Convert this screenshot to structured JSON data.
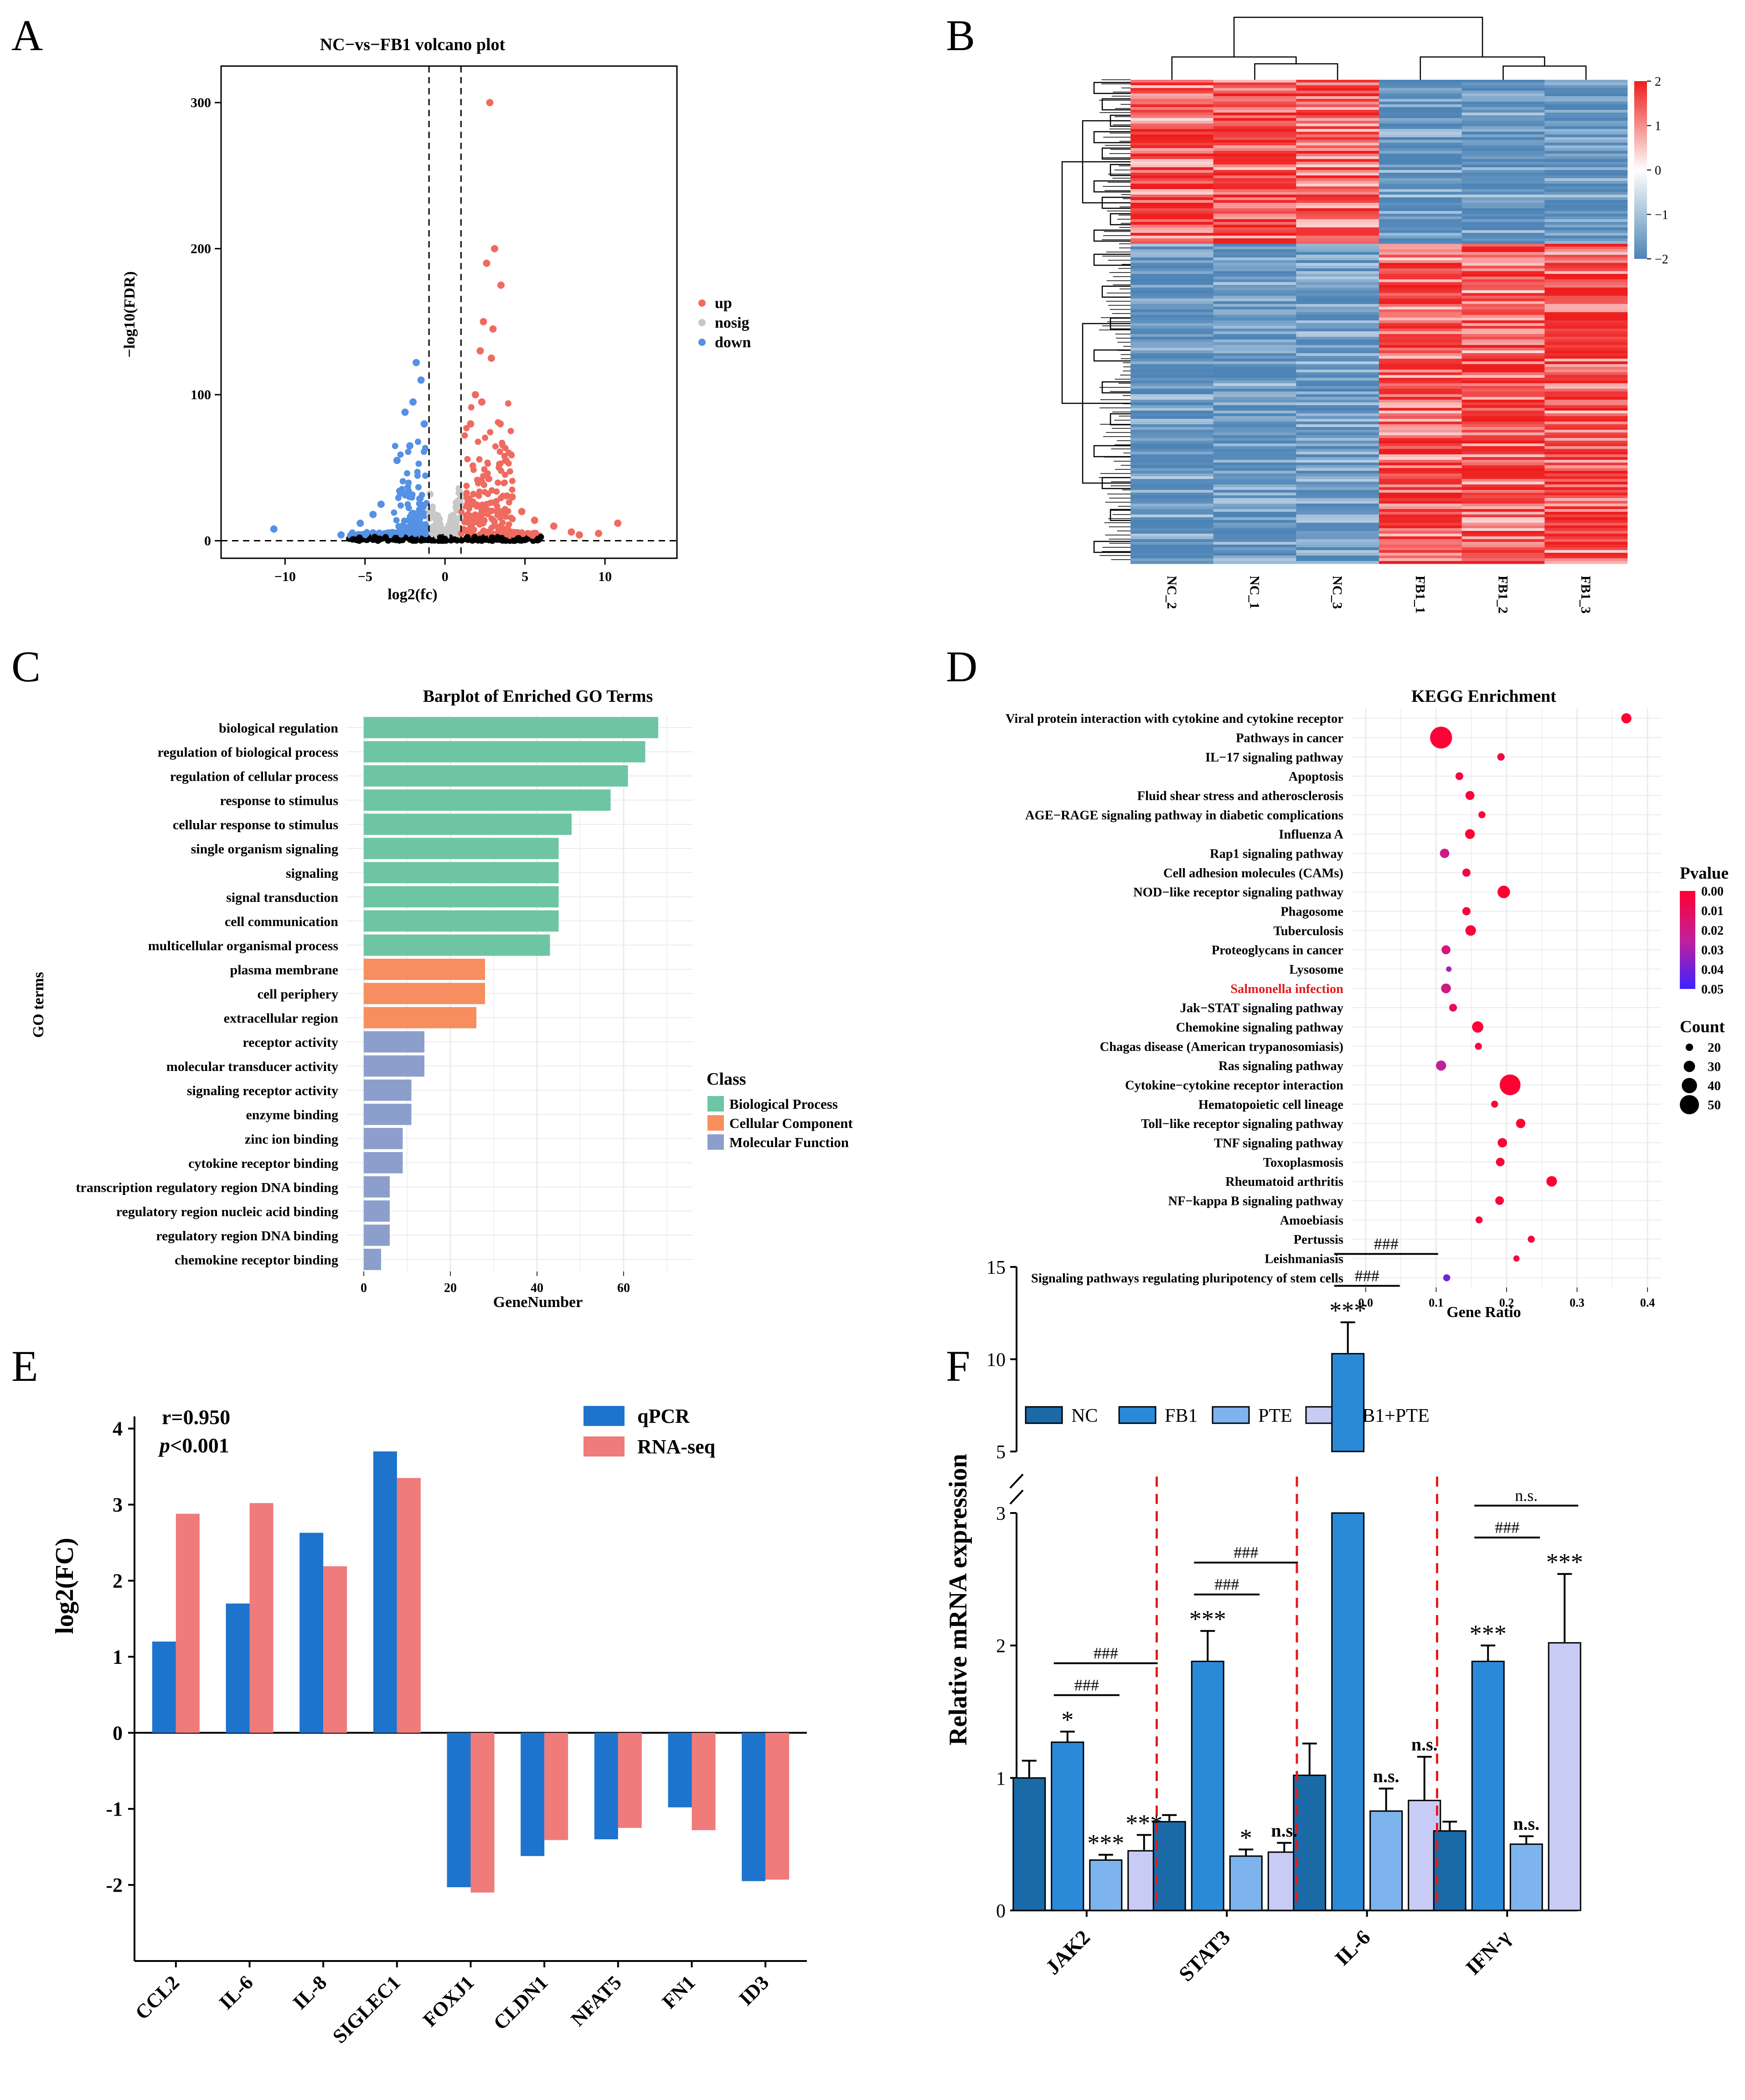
{
  "panel_labels": [
    "A",
    "B",
    "C",
    "D",
    "E",
    "F"
  ],
  "colors": {
    "up": "#ef6b5f",
    "down": "#5591e4",
    "nosig": "#c8c8c8",
    "bp": "#6ec5a4",
    "cc": "#f68e5f",
    "mf": "#8c9fcc",
    "qpcr": "#1e74cc",
    "rnaseq": "#ef7b7b",
    "nc": "#1b6aa8",
    "fb1": "#2b8ad8",
    "pte": "#7db4ee",
    "fb1pte": "#c8ccf5",
    "heat_high": "#ee1c1c",
    "heat_mid": "#ffffff",
    "heat_low": "#4d84b6"
  },
  "chart_data": [
    {
      "panel": "A",
      "type": "scatter",
      "title": "NC−vs−FB1 volcano plot",
      "xlabel": "log2(fc)",
      "ylabel": "−log10(FDR)",
      "xlim": [
        -14,
        14.5
      ],
      "ylim": [
        -12,
        325
      ],
      "xticks": [
        -10,
        -5,
        0,
        5,
        10
      ],
      "yticks": [
        0,
        100,
        200,
        300
      ],
      "tick_labels_x": [
        "−10",
        "−5",
        "0",
        "5",
        "10"
      ],
      "tick_labels_y": [
        "0",
        "100",
        "200",
        "300"
      ],
      "fc_threshold": 1,
      "fdr_threshold": 0,
      "legend": [
        "up",
        "nosig",
        "down"
      ],
      "up_points": [
        {
          "x": 2.8,
          "y": 300
        },
        {
          "x": 3.1,
          "y": 200
        },
        {
          "x": 2.6,
          "y": 190
        },
        {
          "x": 3.5,
          "y": 175
        },
        {
          "x": 2.4,
          "y": 150
        },
        {
          "x": 3.0,
          "y": 145
        },
        {
          "x": 2.2,
          "y": 130
        },
        {
          "x": 2.9,
          "y": 125
        },
        {
          "x": 10.8,
          "y": 12
        },
        {
          "x": 9.6,
          "y": 5
        },
        {
          "x": 8.4,
          "y": 4
        },
        {
          "x": 7.9,
          "y": 6
        },
        {
          "x": 6.8,
          "y": 10
        },
        {
          "x": 5.6,
          "y": 14
        },
        {
          "x": 4.8,
          "y": 20
        },
        {
          "x": 4.2,
          "y": 30
        },
        {
          "x": 3.8,
          "y": 55
        },
        {
          "x": 1.9,
          "y": 100
        },
        {
          "x": 2.3,
          "y": 95
        },
        {
          "x": 1.6,
          "y": 80
        }
      ],
      "down_points": [
        {
          "x": -1.8,
          "y": 122
        },
        {
          "x": -1.5,
          "y": 110
        },
        {
          "x": -2.0,
          "y": 95
        },
        {
          "x": -2.5,
          "y": 88
        },
        {
          "x": -1.3,
          "y": 80
        },
        {
          "x": -3.0,
          "y": 55
        },
        {
          "x": -4.0,
          "y": 25
        },
        {
          "x": -4.5,
          "y": 18
        },
        {
          "x": -5.3,
          "y": 12
        },
        {
          "x": -10.7,
          "y": 8
        },
        {
          "x": -6.5,
          "y": 4
        },
        {
          "x": -2.2,
          "y": 65
        }
      ]
    },
    {
      "panel": "B",
      "type": "heatmap",
      "samples": [
        "NC_2",
        "NC_1",
        "NC_3",
        "FB1_1",
        "FB1_2",
        "FB1_3"
      ],
      "colorbar_ticks": [
        "2",
        "1",
        "0",
        "−1",
        "−2"
      ],
      "clusters": [
        "genes up in NC",
        "genes up in FB1"
      ]
    },
    {
      "panel": "C",
      "type": "bar",
      "orientation": "horizontal",
      "title": "Barplot of Enriched GO Terms",
      "xlabel": "GeneNumber",
      "ylabel": "GO terms",
      "xlim": [
        -4,
        76
      ],
      "xticks": [
        "0",
        "20",
        "40",
        "60"
      ],
      "legend_title": "Class",
      "legend": [
        "Biological Process",
        "Cellular Component",
        "Molecular Function"
      ],
      "categories": [
        "biological regulation",
        "regulation of biological process",
        "regulation of cellular process",
        "response to stimulus",
        "cellular response to stimulus",
        "single organism signaling",
        "signaling",
        "signal transduction",
        "cell communication",
        "multicellular organismal process",
        "plasma membrane",
        "cell periphery",
        "extracellular region",
        "receptor activity",
        "molecular transducer activity",
        "signaling receptor activity",
        "enzyme binding",
        "zinc ion binding",
        "cytokine receptor binding",
        "transcription regulatory region DNA binding",
        "regulatory region nucleic acid binding",
        "regulatory region DNA binding",
        "chemokine receptor binding"
      ],
      "values": [
        68,
        65,
        61,
        57,
        48,
        45,
        45,
        45,
        45,
        43,
        28,
        28,
        26,
        14,
        14,
        11,
        11,
        9,
        9,
        6,
        6,
        6,
        4
      ],
      "classes": [
        "bp",
        "bp",
        "bp",
        "bp",
        "bp",
        "bp",
        "bp",
        "bp",
        "bp",
        "bp",
        "cc",
        "cc",
        "cc",
        "mf",
        "mf",
        "mf",
        "mf",
        "mf",
        "mf",
        "mf",
        "mf",
        "mf",
        "mf"
      ]
    },
    {
      "panel": "D",
      "type": "scatter",
      "title": "KEGG Enrichment",
      "xlabel": "Gene Ratio",
      "xlim": [
        -0.02,
        0.42
      ],
      "xticks": [
        "0.0",
        "0.1",
        "0.2",
        "0.3",
        "0.4"
      ],
      "pvalue_legend_title": "Pvalue",
      "pvalue_ticks": [
        "0.00",
        "0.01",
        "0.02",
        "0.03",
        "0.04",
        "0.05"
      ],
      "count_legend_title": "Count",
      "count_ticks": [
        20,
        30,
        40,
        50
      ],
      "highlight_index": 14,
      "terms": [
        {
          "name": "Viral protein interaction with cytokine and cytokine receptor",
          "ratio": 0.37,
          "count": 27,
          "p": 0.0
        },
        {
          "name": "Pathways in cancer",
          "ratio": 0.107,
          "count": 57,
          "p": 0.001
        },
        {
          "name": "IL−17 signaling pathway",
          "ratio": 0.192,
          "count": 20,
          "p": 0.002
        },
        {
          "name": "Apoptosis",
          "ratio": 0.133,
          "count": 21,
          "p": 0.004
        },
        {
          "name": "Fluid shear stress and atherosclerosis",
          "ratio": 0.148,
          "count": 24,
          "p": 0.002
        },
        {
          "name": "AGE−RAGE signaling pathway in diabetic complications",
          "ratio": 0.165,
          "count": 19,
          "p": 0.002
        },
        {
          "name": "Influenza A",
          "ratio": 0.148,
          "count": 26,
          "p": 0.001
        },
        {
          "name": "Rap1 signaling pathway",
          "ratio": 0.112,
          "count": 25,
          "p": 0.02
        },
        {
          "name": "Cell adhesion molecules (CAMs)",
          "ratio": 0.143,
          "count": 22,
          "p": 0.003
        },
        {
          "name": "NOD−like receptor signaling pathway",
          "ratio": 0.196,
          "count": 33,
          "p": 0.0
        },
        {
          "name": "Phagosome",
          "ratio": 0.143,
          "count": 22,
          "p": 0.002
        },
        {
          "name": "Tuberculosis",
          "ratio": 0.149,
          "count": 28,
          "p": 0.002
        },
        {
          "name": "Proteoglycans in cancer",
          "ratio": 0.114,
          "count": 24,
          "p": 0.018
        },
        {
          "name": "Lysosome",
          "ratio": 0.118,
          "count": 15,
          "p": 0.03
        },
        {
          "name": "Salmonella infection",
          "ratio": 0.114,
          "count": 26,
          "p": 0.02
        },
        {
          "name": "Jak−STAT signaling pathway",
          "ratio": 0.124,
          "count": 21,
          "p": 0.01
        },
        {
          "name": "Chemokine signaling pathway",
          "ratio": 0.159,
          "count": 30,
          "p": 0.001
        },
        {
          "name": "Chagas disease (American trypanosomiasis)",
          "ratio": 0.16,
          "count": 19,
          "p": 0.003
        },
        {
          "name": "Ras signaling pathway",
          "ratio": 0.107,
          "count": 27,
          "p": 0.025
        },
        {
          "name": "Cytokine−cytokine receptor interaction",
          "ratio": 0.205,
          "count": 54,
          "p": 0.0
        },
        {
          "name": "Hematopoietic cell lineage",
          "ratio": 0.183,
          "count": 19,
          "p": 0.002
        },
        {
          "name": "Toll−like receptor signaling pathway",
          "ratio": 0.22,
          "count": 25,
          "p": 0.0
        },
        {
          "name": "TNF signaling pathway",
          "ratio": 0.194,
          "count": 25,
          "p": 0.001
        },
        {
          "name": "Toxoplasmosis",
          "ratio": 0.191,
          "count": 23,
          "p": 0.001
        },
        {
          "name": "Rheumatoid arthritis",
          "ratio": 0.264,
          "count": 28,
          "p": 0.0
        },
        {
          "name": "NF−kappa B signaling pathway",
          "ratio": 0.19,
          "count": 23,
          "p": 0.002
        },
        {
          "name": "Amoebiasis",
          "ratio": 0.161,
          "count": 19,
          "p": 0.002
        },
        {
          "name": "Pertussis",
          "ratio": 0.235,
          "count": 19,
          "p": 0.001
        },
        {
          "name": "Leishmaniasis",
          "ratio": 0.214,
          "count": 17,
          "p": 0.002
        },
        {
          "name": "Signaling pathways regulating pluripotency of stem cells",
          "ratio": 0.115,
          "count": 19,
          "p": 0.04
        }
      ]
    },
    {
      "panel": "E",
      "type": "bar",
      "annotation_r": "r=0.950",
      "annotation_p_prefix": "p",
      "annotation_p_suffix": "<0.001",
      "ylabel": "log2(FC)",
      "ylim": [
        -3,
        4.1
      ],
      "yticks": [
        "-2",
        "-1",
        "0",
        "1",
        "2",
        "3",
        "4"
      ],
      "categories": [
        "CCL2",
        "IL-6",
        "IL-8",
        "SIGLEC1",
        "FOXJ1",
        "CLDN1",
        "NFAT5",
        "FN1",
        "ID3"
      ],
      "series": [
        {
          "name": "qPCR",
          "values": [
            1.2,
            1.7,
            2.63,
            3.7,
            -2.03,
            -1.62,
            -1.4,
            -0.98,
            -1.95
          ]
        },
        {
          "name": "RNA-seq",
          "values": [
            2.88,
            3.02,
            2.19,
            3.35,
            -2.1,
            -1.41,
            -1.25,
            -1.28,
            -1.93
          ]
        }
      ]
    },
    {
      "panel": "F",
      "type": "bar",
      "ylabel": "Relative mRNA expression",
      "axis_break": [
        3,
        5
      ],
      "yticks_lower": [
        "0",
        "1",
        "2",
        "3"
      ],
      "yticks_upper": [
        "5",
        "10",
        "15"
      ],
      "categories": [
        "JAK2",
        "STAT3",
        "IL-6",
        "IFN-γ"
      ],
      "series": [
        {
          "name": "NC",
          "values": [
            1.0,
            0.67,
            1.02,
            0.6
          ],
          "errors": [
            0.13,
            0.05,
            0.24,
            0.07
          ]
        },
        {
          "name": "FB1",
          "values": [
            1.27,
            1.88,
            10.3,
            1.88
          ],
          "errors": [
            0.08,
            0.23,
            1.7,
            0.12
          ]
        },
        {
          "name": "PTE",
          "values": [
            0.38,
            0.41,
            0.75,
            0.5
          ],
          "errors": [
            0.04,
            0.05,
            0.17,
            0.06
          ]
        },
        {
          "name": "FB1+PTE",
          "values": [
            0.45,
            0.44,
            0.83,
            2.02
          ],
          "errors": [
            0.12,
            0.07,
            0.33,
            0.52
          ]
        }
      ],
      "significance_vs_nc": [
        [
          "",
          "*",
          "***",
          "***"
        ],
        [
          "",
          "***",
          "*",
          "n.s."
        ],
        [
          "",
          "***",
          "n.s.",
          "n.s."
        ],
        [
          "",
          "***",
          "n.s.",
          "***"
        ]
      ],
      "brackets": [
        {
          "group": 0,
          "from": 1,
          "to": 2,
          "label": "###"
        },
        {
          "group": 0,
          "from": 1,
          "to": 3,
          "label": "###"
        },
        {
          "group": 1,
          "from": 1,
          "to": 2,
          "label": "###"
        },
        {
          "group": 1,
          "from": 1,
          "to": 3,
          "label": "###"
        },
        {
          "group": 2,
          "from": 1,
          "to": 2,
          "label": "###"
        },
        {
          "group": 2,
          "from": 1,
          "to": 3,
          "label": "###"
        },
        {
          "group": 3,
          "from": 1,
          "to": 2,
          "label": "###"
        },
        {
          "group": 3,
          "from": 1,
          "to": 3,
          "label": "n.s."
        }
      ]
    }
  ]
}
